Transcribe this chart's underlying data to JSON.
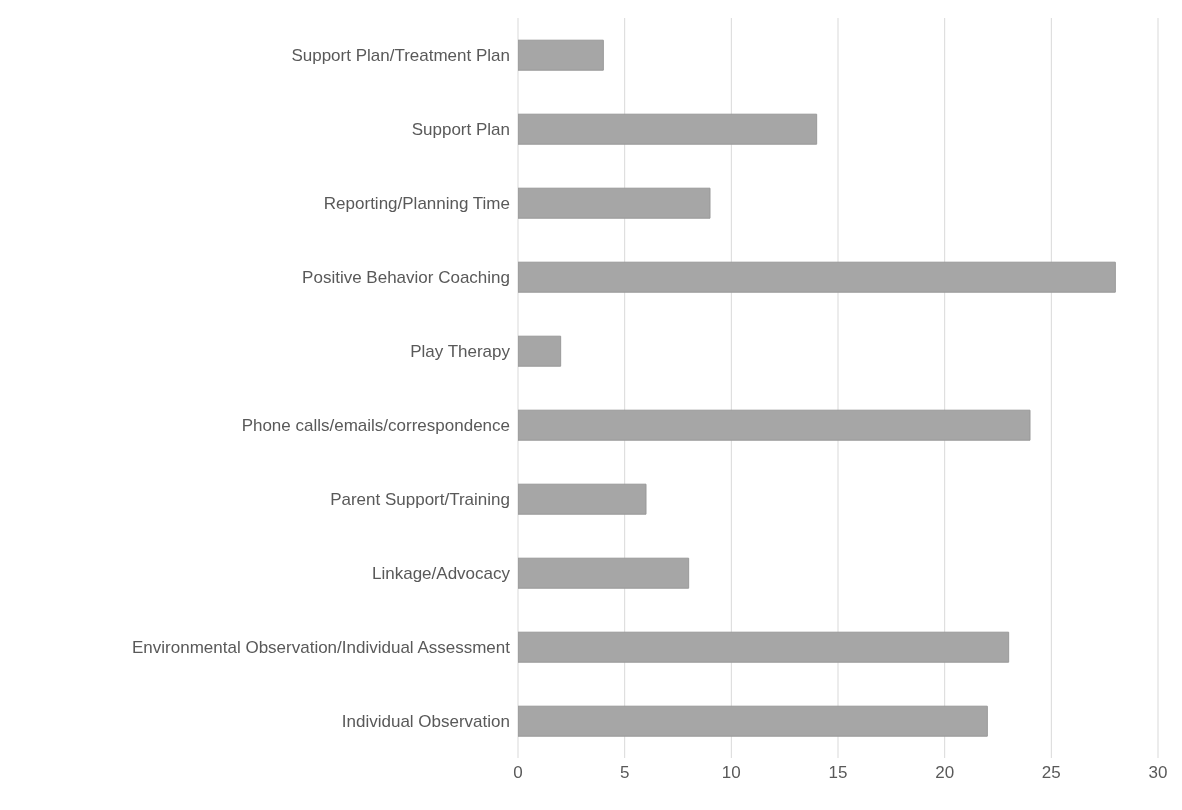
{
  "chart_data": {
    "type": "bar",
    "orientation": "horizontal",
    "categories": [
      "Support Plan/Treatment Plan",
      "Support Plan",
      "Reporting/Planning Time",
      "Positive Behavior Coaching",
      "Play Therapy",
      "Phone calls/emails/correspondence",
      "Parent Support/Training",
      "Linkage/Advocacy",
      "Environmental Observation/Individual Assessment",
      "Individual Observation"
    ],
    "values": [
      4,
      14,
      9,
      28,
      2,
      24,
      6,
      8,
      23,
      22
    ],
    "color": "#a6a6a6",
    "xlim": [
      0,
      30
    ],
    "xticks": [
      0,
      5,
      10,
      15,
      20,
      25,
      30
    ],
    "grid": "x"
  }
}
